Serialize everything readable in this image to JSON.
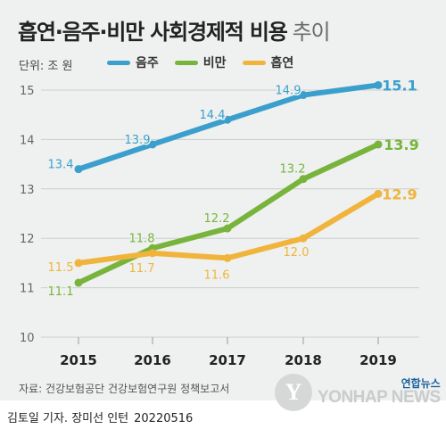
{
  "title": "흡연·음주·비만 사회경제적 비용",
  "subtitle": "추이",
  "unit_label": "단위: 조 원",
  "source": "자료: 건강보험공단 건강보험연구원 정책보고서",
  "logo": {
    "brand_kr": "연합뉴스",
    "brand_en": "YONHAP NEWS",
    "mark": "Y"
  },
  "credit": {
    "authors": "김토일 기자. 장미선 인턴",
    "date": "20220516"
  },
  "colors": {
    "alcohol": "#3b9fcd",
    "obesity": "#78b43c",
    "smoking": "#f0b43c",
    "background": "#eef1ef"
  },
  "chart_data": {
    "type": "line",
    "x": [
      "2015",
      "2016",
      "2017",
      "2018",
      "2019"
    ],
    "ylim": [
      10,
      15
    ],
    "yticks": [
      "10",
      "11",
      "12",
      "13",
      "14",
      "15"
    ],
    "grid": true,
    "legend_position": "top",
    "series": [
      {
        "name": "음주",
        "color": "#3b9fcd",
        "values": [
          13.4,
          13.9,
          14.4,
          14.9,
          15.1
        ],
        "labels": [
          "13.4",
          "13.9",
          "14.4",
          "14.9",
          "15.1"
        ]
      },
      {
        "name": "비만",
        "color": "#78b43c",
        "values": [
          11.1,
          11.8,
          12.2,
          13.2,
          13.9
        ],
        "labels": [
          "11.1",
          "11.8",
          "12.2",
          "13.2",
          "13.9"
        ]
      },
      {
        "name": "흡연",
        "color": "#f0b43c",
        "values": [
          11.5,
          11.7,
          11.6,
          12.0,
          12.9
        ],
        "labels": [
          "11.5",
          "11.7",
          "11.6",
          "12.0",
          "12.9"
        ]
      }
    ]
  }
}
